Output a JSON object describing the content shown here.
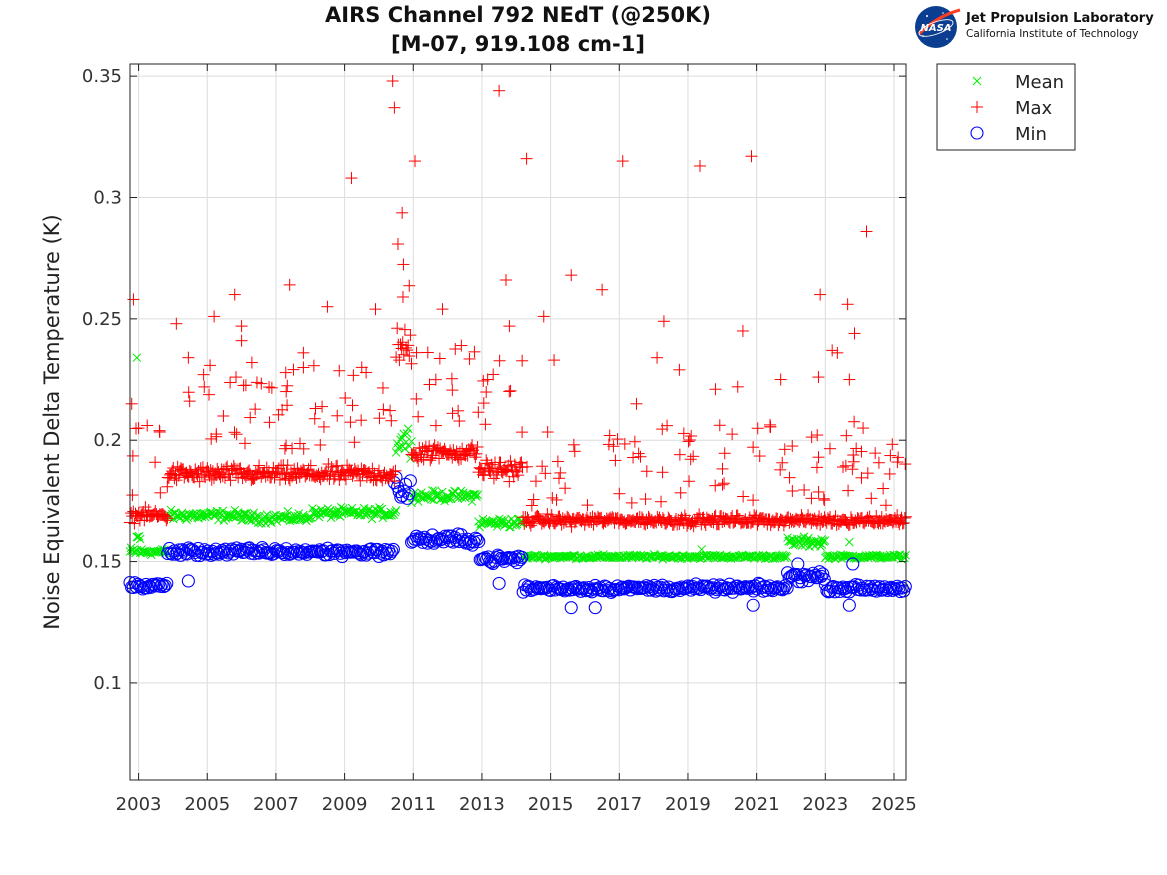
{
  "header": {
    "title_line1": "AIRS Channel 792 NEdT (@250K)",
    "title_line2": "[M-07, 919.108 cm-1]"
  },
  "logo": {
    "badge_text": "NASA",
    "line1": "Jet Propulsion Laboratory",
    "line2": "California Institute of Technology"
  },
  "colors": {
    "mean": "#00ee00",
    "max": "#ff0000",
    "min": "#0000ff",
    "grid": "#dcdcdc"
  },
  "chart_data": {
    "type": "scatter",
    "ylabel": "Noise Equivalent Delta Temperature (K)",
    "xlabel": "",
    "xlim": [
      2002.75,
      2025.35
    ],
    "ylim": [
      0.06,
      0.355
    ],
    "x_ticks": [
      2003,
      2005,
      2007,
      2009,
      2011,
      2013,
      2015,
      2017,
      2019,
      2021,
      2023,
      2025
    ],
    "x_tick_labels": [
      "2003",
      "2005",
      "2007",
      "2009",
      "2011",
      "2013",
      "2015",
      "2017",
      "2019",
      "2021",
      "2023",
      "2025"
    ],
    "y_ticks": [
      0.1,
      0.15,
      0.2,
      0.25,
      0.3,
      0.35
    ],
    "y_tick_labels": [
      "0.1",
      "0.15",
      "0.2",
      "0.25",
      "0.3",
      "0.35"
    ],
    "grid": true,
    "legend_position": "outside-top-right",
    "series": [
      {
        "name": "Mean",
        "marker": "x",
        "color": "#00ee00",
        "segments": [
          {
            "x0": 2002.75,
            "x1": 2002.95,
            "y": 0.154,
            "spread": 0.003
          },
          {
            "x0": 2002.95,
            "x1": 2003.05,
            "y": 0.16,
            "spread": 0.003
          },
          {
            "x0": 2003.05,
            "x1": 2003.85,
            "y": 0.154,
            "spread": 0.002
          },
          {
            "x0": 2003.85,
            "x1": 2006.0,
            "y": 0.169,
            "spread": 0.003
          },
          {
            "x0": 2006.0,
            "x1": 2008.0,
            "y": 0.168,
            "spread": 0.003
          },
          {
            "x0": 2008.0,
            "x1": 2010.5,
            "y": 0.17,
            "spread": 0.003
          },
          {
            "x0": 2010.5,
            "x1": 2010.95,
            "y": 0.2,
            "spread": 0.009
          },
          {
            "x0": 2010.95,
            "x1": 2012.9,
            "y": 0.177,
            "spread": 0.003
          },
          {
            "x0": 2012.9,
            "x1": 2014.2,
            "y": 0.166,
            "spread": 0.003
          },
          {
            "x0": 2014.2,
            "x1": 2021.9,
            "y": 0.152,
            "spread": 0.0012
          },
          {
            "x0": 2021.9,
            "x1": 2023.0,
            "y": 0.158,
            "spread": 0.003
          },
          {
            "x0": 2023.0,
            "x1": 2025.35,
            "y": 0.152,
            "spread": 0.0012
          }
        ],
        "outliers": [
          {
            "x": 2002.95,
            "y": 0.234
          },
          {
            "x": 2019.4,
            "y": 0.155
          },
          {
            "x": 2022.9,
            "y": 0.157
          },
          {
            "x": 2023.7,
            "y": 0.158
          }
        ]
      },
      {
        "name": "Max",
        "marker": "+",
        "color": "#ff0000",
        "segments": [
          {
            "x0": 2002.75,
            "x1": 2003.85,
            "y": 0.169,
            "spread": 0.004
          },
          {
            "x0": 2003.85,
            "x1": 2010.5,
            "y": 0.186,
            "spread": 0.005
          },
          {
            "x0": 2010.5,
            "x1": 2010.95,
            "y": 0.238,
            "spread": 0.012
          },
          {
            "x0": 2010.95,
            "x1": 2012.9,
            "y": 0.195,
            "spread": 0.005
          },
          {
            "x0": 2012.9,
            "x1": 2014.2,
            "y": 0.188,
            "spread": 0.006
          },
          {
            "x0": 2014.2,
            "x1": 2025.35,
            "y": 0.167,
            "spread": 0.003
          }
        ],
        "outliers": [
          {
            "x": 2002.85,
            "y": 0.258
          },
          {
            "x": 2002.8,
            "y": 0.215
          },
          {
            "x": 2003.0,
            "y": 0.205
          },
          {
            "x": 2004.1,
            "y": 0.248
          },
          {
            "x": 2004.45,
            "y": 0.234
          },
          {
            "x": 2005.2,
            "y": 0.251
          },
          {
            "x": 2005.8,
            "y": 0.26
          },
          {
            "x": 2006.0,
            "y": 0.247
          },
          {
            "x": 2006.0,
            "y": 0.241
          },
          {
            "x": 2006.3,
            "y": 0.232
          },
          {
            "x": 2007.4,
            "y": 0.264
          },
          {
            "x": 2007.8,
            "y": 0.236
          },
          {
            "x": 2008.5,
            "y": 0.255
          },
          {
            "x": 2009.2,
            "y": 0.308
          },
          {
            "x": 2009.5,
            "y": 0.23
          },
          {
            "x": 2009.9,
            "y": 0.254
          },
          {
            "x": 2010.4,
            "y": 0.348
          },
          {
            "x": 2010.45,
            "y": 0.337
          },
          {
            "x": 2010.7,
            "y": 0.259
          },
          {
            "x": 2011.05,
            "y": 0.315
          },
          {
            "x": 2011.85,
            "y": 0.254
          },
          {
            "x": 2012.4,
            "y": 0.239
          },
          {
            "x": 2013.5,
            "y": 0.344
          },
          {
            "x": 2013.7,
            "y": 0.266
          },
          {
            "x": 2013.8,
            "y": 0.247
          },
          {
            "x": 2014.3,
            "y": 0.316
          },
          {
            "x": 2014.8,
            "y": 0.251
          },
          {
            "x": 2015.1,
            "y": 0.233
          },
          {
            "x": 2015.6,
            "y": 0.268
          },
          {
            "x": 2016.5,
            "y": 0.262
          },
          {
            "x": 2017.1,
            "y": 0.315
          },
          {
            "x": 2017.5,
            "y": 0.215
          },
          {
            "x": 2018.3,
            "y": 0.249
          },
          {
            "x": 2018.1,
            "y": 0.234
          },
          {
            "x": 2018.75,
            "y": 0.229
          },
          {
            "x": 2019.35,
            "y": 0.313
          },
          {
            "x": 2019.8,
            "y": 0.221
          },
          {
            "x": 2020.6,
            "y": 0.245
          },
          {
            "x": 2020.45,
            "y": 0.222
          },
          {
            "x": 2020.85,
            "y": 0.317
          },
          {
            "x": 2021.7,
            "y": 0.225
          },
          {
            "x": 2022.85,
            "y": 0.26
          },
          {
            "x": 2022.8,
            "y": 0.226
          },
          {
            "x": 2023.2,
            "y": 0.237
          },
          {
            "x": 2023.35,
            "y": 0.236
          },
          {
            "x": 2023.65,
            "y": 0.256
          },
          {
            "x": 2023.7,
            "y": 0.225
          },
          {
            "x": 2023.85,
            "y": 0.244
          },
          {
            "x": 2024.1,
            "y": 0.205
          },
          {
            "x": 2024.2,
            "y": 0.286
          },
          {
            "x": 2025.1,
            "y": 0.191
          }
        ]
      },
      {
        "name": "Min",
        "marker": "o",
        "color": "#0000ff",
        "segments": [
          {
            "x0": 2002.75,
            "x1": 2003.85,
            "y": 0.14,
            "spread": 0.0025
          },
          {
            "x0": 2003.85,
            "x1": 2010.45,
            "y": 0.154,
            "spread": 0.0025
          },
          {
            "x0": 2010.45,
            "x1": 2010.95,
            "y": 0.18,
            "spread": 0.008
          },
          {
            "x0": 2010.95,
            "x1": 2012.95,
            "y": 0.159,
            "spread": 0.003
          },
          {
            "x0": 2012.95,
            "x1": 2014.2,
            "y": 0.151,
            "spread": 0.003
          },
          {
            "x0": 2014.2,
            "x1": 2021.9,
            "y": 0.139,
            "spread": 0.0022
          },
          {
            "x0": 2021.9,
            "x1": 2023.0,
            "y": 0.144,
            "spread": 0.003
          },
          {
            "x0": 2023.0,
            "x1": 2025.35,
            "y": 0.139,
            "spread": 0.002
          }
        ],
        "outliers": [
          {
            "x": 2004.45,
            "y": 0.142
          },
          {
            "x": 2013.5,
            "y": 0.141
          },
          {
            "x": 2015.6,
            "y": 0.131
          },
          {
            "x": 2016.3,
            "y": 0.131
          },
          {
            "x": 2020.9,
            "y": 0.132
          },
          {
            "x": 2023.7,
            "y": 0.132
          },
          {
            "x": 2023.8,
            "y": 0.149
          },
          {
            "x": 2022.2,
            "y": 0.149
          }
        ]
      }
    ]
  }
}
